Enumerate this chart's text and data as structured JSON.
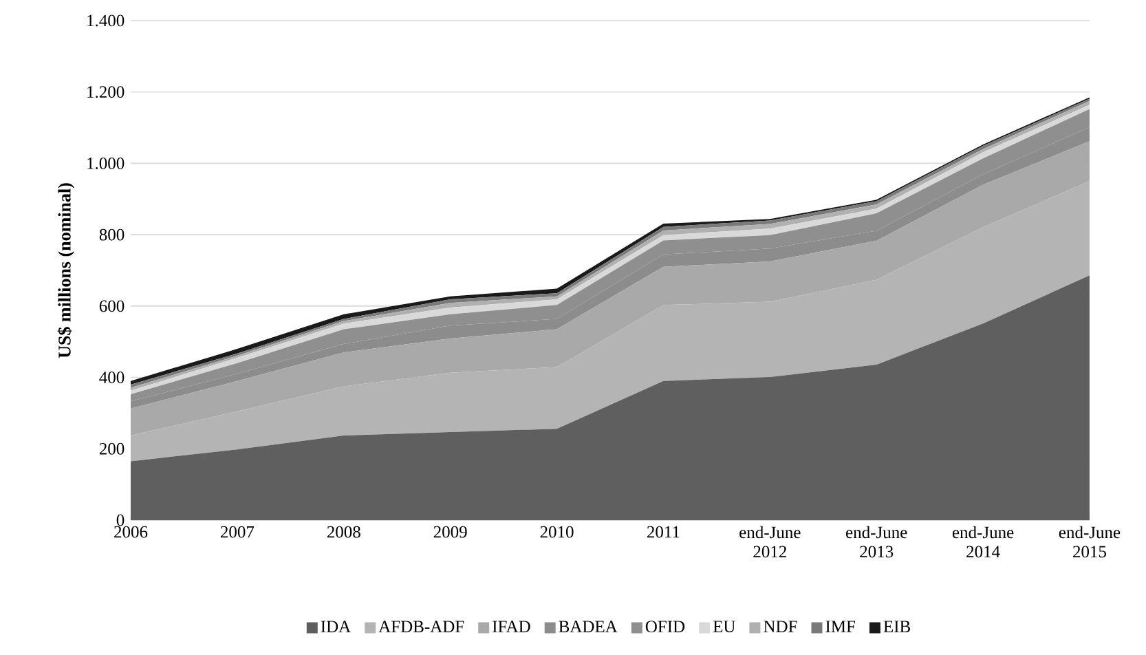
{
  "chart_data": {
    "type": "area",
    "stacked": true,
    "ylabel": "US$ millions (nominal)",
    "categories": [
      "2006",
      "2007",
      "2008",
      "2009",
      "2010",
      "2011",
      "end-June 2012",
      "end-June 2013",
      "end-June 2014",
      "end-June 2015"
    ],
    "ylim": [
      0,
      1400
    ],
    "yticks": [
      0,
      200,
      400,
      600,
      800,
      {
        "value": 1000,
        "label": "1.000"
      },
      {
        "value": 1200,
        "label": "1.200"
      },
      {
        "value": 1400,
        "label": "1.400"
      }
    ],
    "grid": "y",
    "legend": "bottom",
    "series": [
      {
        "name": "IDA",
        "color": "#5f5f5f",
        "values": [
          165,
          198,
          237,
          247,
          256,
          390,
          401,
          436,
          551,
          686
        ]
      },
      {
        "name": "AFDB-ADF",
        "color": "#b4b4b4",
        "values": [
          72,
          107,
          138,
          166,
          173,
          213,
          211,
          238,
          270,
          264
        ]
      },
      {
        "name": "IFAD",
        "color": "#a9a9a9",
        "values": [
          76,
          85,
          95,
          96,
          106,
          107,
          113,
          109,
          119,
          112
        ]
      },
      {
        "name": "BADEA",
        "color": "#8c8c8c",
        "values": [
          20,
          20,
          24,
          36,
          29,
          35,
          36,
          28,
          29,
          39
        ]
      },
      {
        "name": "OFID",
        "color": "#8f8f8f",
        "values": [
          20,
          30,
          41,
          32,
          39,
          39,
          38,
          49,
          45,
          51
        ]
      },
      {
        "name": "EU",
        "color": "#d9d9d9",
        "values": [
          10,
          15,
          16,
          19,
          16,
          15,
          18,
          13,
          17,
          12
        ]
      },
      {
        "name": "NDF",
        "color": "#b0b0b0",
        "values": [
          8,
          6,
          7,
          13,
          8,
          13,
          13,
          12,
          9,
          11
        ]
      },
      {
        "name": "IMF",
        "color": "#7a7a7a",
        "values": [
          9,
          6,
          6,
          10,
          9,
          10,
          10,
          9,
          9,
          6
        ]
      },
      {
        "name": "EIB",
        "color": "#1a1a1a",
        "values": [
          10,
          13,
          13,
          8,
          13,
          9,
          4,
          4,
          4,
          4
        ]
      }
    ]
  }
}
